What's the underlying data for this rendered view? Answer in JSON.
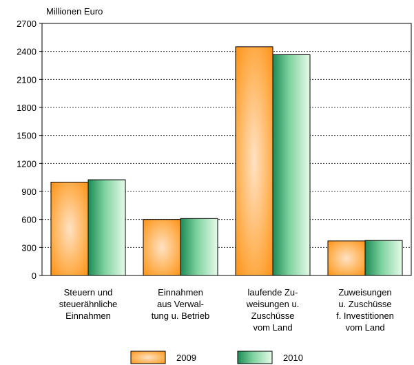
{
  "chart_data": {
    "type": "bar",
    "unit_label": "Millionen Euro",
    "categories": [
      [
        "Steuern und",
        "steuerähnliche",
        "Einnahmen"
      ],
      [
        "Einnahmen",
        "aus Verwal-",
        "tung u. Betrieb"
      ],
      [
        "laufende Zu-",
        "weisungen u.",
        "Zuschüsse",
        "vom Land"
      ],
      [
        "Zuweisungen",
        "u. Zuschüsse",
        "f. Investitionen",
        "vom Land"
      ]
    ],
    "series": [
      {
        "name": "2009",
        "values": [
          1000,
          600,
          2450,
          370
        ],
        "color": "#ff9a22"
      },
      {
        "name": "2010",
        "values": [
          1025,
          610,
          2365,
          375
        ],
        "color": "#2ea36a"
      }
    ],
    "ylim": [
      0,
      2700
    ],
    "yticks": [
      0,
      300,
      600,
      900,
      1200,
      1500,
      1800,
      2100,
      2400,
      2700
    ],
    "grid": "horizontal dashed",
    "legend_position": "bottom"
  }
}
